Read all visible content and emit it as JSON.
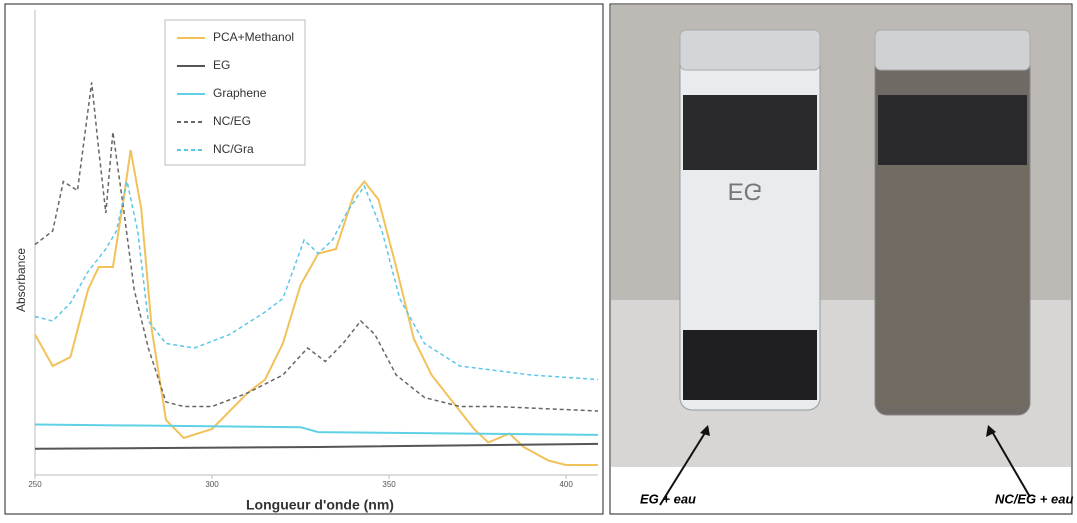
{
  "chart_data": {
    "type": "line",
    "x_label": "Longueur d'onde (nm)",
    "y_label": "Absorbance",
    "xlim": [
      250,
      409
    ],
    "ylim": [
      0,
      1
    ],
    "xticks": [
      250,
      300,
      350,
      400
    ],
    "legend": "top-center",
    "series": [
      {
        "name": "PCA+Methanol",
        "color": "#f2c25a",
        "dash": false,
        "x": [
          250,
          255,
          260,
          265,
          268,
          272,
          275,
          277,
          280,
          283,
          287,
          292,
          300,
          310,
          315,
          320,
          325,
          330,
          335,
          340,
          343,
          347,
          352,
          357,
          362,
          368,
          374,
          378,
          384,
          388,
          395,
          400,
          409
        ],
        "values": [
          0.29,
          0.22,
          0.24,
          0.39,
          0.44,
          0.44,
          0.59,
          0.7,
          0.57,
          0.3,
          0.1,
          0.06,
          0.08,
          0.16,
          0.19,
          0.27,
          0.4,
          0.47,
          0.48,
          0.6,
          0.63,
          0.59,
          0.44,
          0.28,
          0.2,
          0.14,
          0.08,
          0.05,
          0.07,
          0.04,
          0.01,
          0.0,
          0.0
        ]
      },
      {
        "name": "EG",
        "color": "#555555",
        "dash": false,
        "x": [
          250,
          330,
          409
        ],
        "values": [
          0.036,
          0.04,
          0.047
        ]
      },
      {
        "name": "Graphene",
        "color": "#5fd0e6",
        "dash": false,
        "x": [
          250,
          325,
          330,
          409
        ],
        "values": [
          0.09,
          0.084,
          0.073,
          0.067
        ]
      },
      {
        "name": "NC/EG",
        "color": "#666666",
        "dash": true,
        "x": [
          250,
          255,
          258,
          262,
          266,
          268,
          270,
          272,
          275,
          278,
          282,
          287,
          292,
          300,
          310,
          320,
          327,
          332,
          337,
          342,
          346,
          352,
          360,
          370,
          380,
          409
        ],
        "values": [
          0.49,
          0.52,
          0.63,
          0.61,
          0.85,
          0.7,
          0.56,
          0.74,
          0.57,
          0.39,
          0.26,
          0.14,
          0.13,
          0.13,
          0.16,
          0.2,
          0.26,
          0.23,
          0.27,
          0.32,
          0.29,
          0.2,
          0.15,
          0.13,
          0.13,
          0.12
        ]
      },
      {
        "name": "NC/Gra",
        "color": "#5cc6ea",
        "dash": true,
        "x": [
          250,
          255,
          260,
          265,
          270,
          273,
          276,
          279,
          282,
          287,
          295,
          305,
          315,
          320,
          326,
          330,
          334,
          338,
          343,
          348,
          353,
          360,
          370,
          380,
          390,
          409
        ],
        "values": [
          0.33,
          0.32,
          0.36,
          0.43,
          0.48,
          0.52,
          0.63,
          0.52,
          0.32,
          0.27,
          0.26,
          0.29,
          0.34,
          0.37,
          0.5,
          0.47,
          0.5,
          0.56,
          0.62,
          0.52,
          0.37,
          0.27,
          0.22,
          0.21,
          0.2,
          0.19
        ]
      }
    ]
  },
  "photo": {
    "jar_text": "EG",
    "labels": [
      "EG + eau",
      "NC/EG + eau"
    ]
  }
}
